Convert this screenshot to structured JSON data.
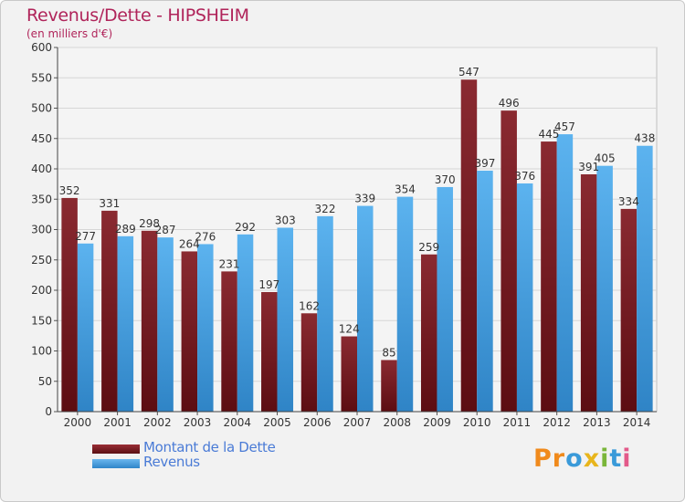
{
  "header": {
    "title": "Revenus/Dette - HIPSHEIM",
    "subtitle": "(en milliers d'€)"
  },
  "chart_data": {
    "type": "bar",
    "title": "Revenus/Dette - HIPSHEIM",
    "ylabel": "(en milliers d'€)",
    "ylim": [
      0,
      600
    ],
    "yticks": [
      0,
      50,
      100,
      150,
      200,
      250,
      300,
      350,
      400,
      450,
      500,
      550,
      600
    ],
    "grid": true,
    "legend_position": "bottom-left",
    "categories": [
      "2000",
      "2001",
      "2002",
      "2003",
      "2004",
      "2005",
      "2006",
      "2007",
      "2008",
      "2009",
      "2010",
      "2011",
      "2012",
      "2013",
      "2014"
    ],
    "series": [
      {
        "name": "Montant de la Dette",
        "color": "#7a1f25",
        "values": [
          352,
          331,
          298,
          264,
          231,
          197,
          162,
          124,
          85,
          259,
          547,
          496,
          445,
          391,
          334
        ],
        "labels": [
          "352",
          "331",
          "298",
          "264",
          "231",
          "197",
          "162",
          "124",
          "85",
          "259",
          "547",
          "496",
          "445",
          "391",
          "334"
        ]
      },
      {
        "name": "Revenus",
        "color": "#4ea6e8",
        "values": [
          277,
          289,
          287,
          276,
          292,
          303,
          322,
          339,
          354,
          370,
          397,
          376,
          457,
          405,
          438
        ],
        "labels": [
          "277",
          "289",
          "287",
          "276",
          "292",
          "303",
          "322",
          "339",
          "354",
          "370",
          "397",
          "376",
          "457",
          "405",
          "438"
        ]
      }
    ]
  },
  "legend": {
    "items": [
      {
        "label": "Montant de la Dette",
        "color": "#7a1f25"
      },
      {
        "label": "Revenus",
        "color": "#4ea6e8"
      }
    ]
  },
  "logo": {
    "letters": [
      "P",
      "r",
      "o",
      "x",
      "i",
      "t",
      "i"
    ],
    "colors": [
      "#f08a1c",
      "#f08a1c",
      "#3a9ad9",
      "#e8b51c",
      "#7ab63a",
      "#3a9ad9",
      "#e35a8a"
    ]
  }
}
